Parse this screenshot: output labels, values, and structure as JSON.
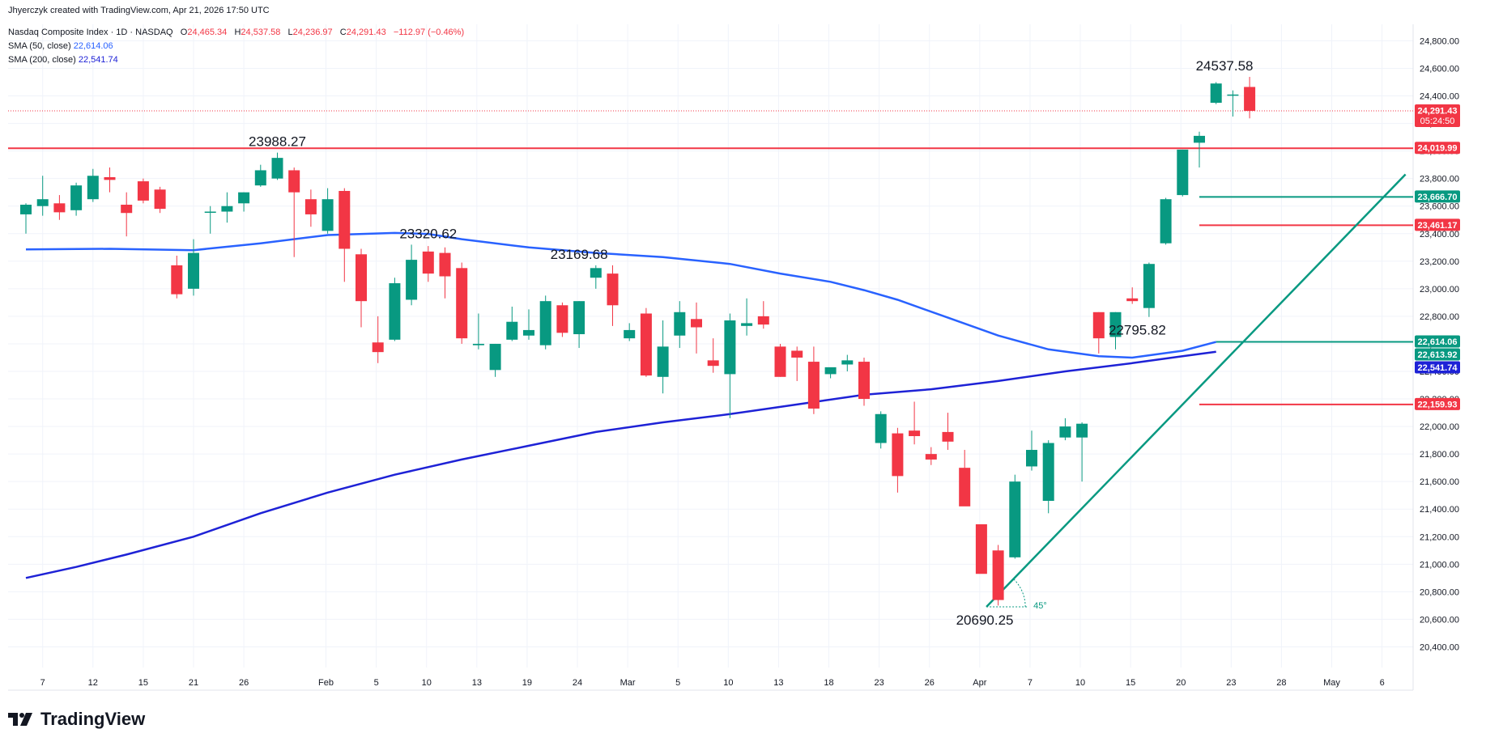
{
  "header": {
    "credit": "Jhyerczyk created with TradingView.com, Apr 21, 2026 17:50 UTC",
    "symbol": "Nasdaq Composite Index · 1D · NASDAQ",
    "ohlc": {
      "o_label": "O",
      "o": "24,465.34",
      "h_label": "H",
      "h": "24,537.58",
      "l_label": "L",
      "l": "24,236.97",
      "c_label": "C",
      "c": "24,291.43",
      "change": "−112.97 (−0.46%)"
    },
    "sma50": {
      "label": "SMA (50, close)",
      "value": "22,614.06"
    },
    "sma200": {
      "label": "SMA (200, close)",
      "value": "22,541.74"
    }
  },
  "brand": {
    "name": "TradingView"
  },
  "colors": {
    "up": "#089981",
    "down": "#f23645",
    "sma50": "#2962ff",
    "sma200": "#1e22d6",
    "line_red": "#f23645",
    "line_green": "#089981",
    "grid": "#f0f3fa",
    "text": "#131722"
  },
  "chart_data": {
    "type": "candlestick",
    "title": "Nasdaq Composite Index · 1D · NASDAQ",
    "ylim": [
      20250,
      24920
    ],
    "y_ticks": [
      20400,
      20600,
      20800,
      21000,
      21200,
      21400,
      21600,
      21800,
      22000,
      22200,
      22400,
      22600,
      22800,
      23000,
      23200,
      23400,
      23600,
      23800,
      24000,
      24200,
      24400,
      24600,
      24800
    ],
    "y_tick_labels": [
      "20,400.00",
      "20,600.00",
      "20,800.00",
      "21,000.00",
      "21,200.00",
      "21,400.00",
      "21,600.00",
      "21,800.00",
      "22,000.00",
      "22,200.00",
      "22,400.00",
      "22,600.00",
      "22,800.00",
      "23,000.00",
      "23,200.00",
      "23,400.00",
      "23,600.00",
      "23,800.00",
      "24,000.00",
      "24,200.00",
      "24,400.00",
      "24,600.00",
      "24,800.00"
    ],
    "x_ticks": [
      {
        "index": 1,
        "label": "7"
      },
      {
        "index": 4,
        "label": "12"
      },
      {
        "index": 7,
        "label": "15"
      },
      {
        "index": 10,
        "label": "21"
      },
      {
        "index": 13,
        "label": "26"
      },
      {
        "index": 17.9,
        "label": "Feb"
      },
      {
        "index": 20.9,
        "label": "5"
      },
      {
        "index": 23.9,
        "label": "10"
      },
      {
        "index": 26.9,
        "label": "13"
      },
      {
        "index": 29.9,
        "label": "19"
      },
      {
        "index": 32.9,
        "label": "24"
      },
      {
        "index": 35.9,
        "label": "Mar"
      },
      {
        "index": 38.9,
        "label": "5"
      },
      {
        "index": 41.9,
        "label": "10"
      },
      {
        "index": 44.9,
        "label": "13"
      },
      {
        "index": 47.9,
        "label": "18"
      },
      {
        "index": 50.9,
        "label": "23"
      },
      {
        "index": 53.9,
        "label": "26"
      },
      {
        "index": 56.9,
        "label": "Apr"
      },
      {
        "index": 59.9,
        "label": "7"
      },
      {
        "index": 62.9,
        "label": "10"
      },
      {
        "index": 65.9,
        "label": "15"
      },
      {
        "index": 68.9,
        "label": "20"
      },
      {
        "index": 71.9,
        "label": "23"
      },
      {
        "index": 74.9,
        "label": "28"
      },
      {
        "index": 77.9,
        "label": "May"
      },
      {
        "index": 80.9,
        "label": "6"
      }
    ],
    "candles": [
      {
        "o": 23540,
        "h": 23620,
        "l": 23400,
        "c": 23610
      },
      {
        "o": 23600,
        "h": 23820,
        "l": 23530,
        "c": 23650
      },
      {
        "o": 23620,
        "h": 23680,
        "l": 23500,
        "c": 23555
      },
      {
        "o": 23570,
        "h": 23770,
        "l": 23530,
        "c": 23750
      },
      {
        "o": 23650,
        "h": 23870,
        "l": 23630,
        "c": 23820
      },
      {
        "o": 23810,
        "h": 23880,
        "l": 23700,
        "c": 23790
      },
      {
        "o": 23610,
        "h": 23700,
        "l": 23380,
        "c": 23550
      },
      {
        "o": 23780,
        "h": 23800,
        "l": 23620,
        "c": 23640
      },
      {
        "o": 23720,
        "h": 23740,
        "l": 23550,
        "c": 23580
      },
      {
        "o": 23170,
        "h": 23240,
        "l": 22930,
        "c": 22960
      },
      {
        "o": 23000,
        "h": 23360,
        "l": 22950,
        "c": 23260
      },
      {
        "o": 23560,
        "h": 23600,
        "l": 23400,
        "c": 23560
      },
      {
        "o": 23560,
        "h": 23700,
        "l": 23480,
        "c": 23600
      },
      {
        "o": 23620,
        "h": 23700,
        "l": 23560,
        "c": 23700
      },
      {
        "o": 23750,
        "h": 23900,
        "l": 23740,
        "c": 23860
      },
      {
        "o": 23800,
        "h": 23988,
        "l": 23790,
        "c": 23950
      },
      {
        "o": 23860,
        "h": 23880,
        "l": 23230,
        "c": 23700
      },
      {
        "o": 23650,
        "h": 23720,
        "l": 23450,
        "c": 23540
      },
      {
        "o": 23420,
        "h": 23730,
        "l": 23400,
        "c": 23650
      },
      {
        "o": 23710,
        "h": 23730,
        "l": 23050,
        "c": 23290
      },
      {
        "o": 23250,
        "h": 23290,
        "l": 22720,
        "c": 22910
      },
      {
        "o": 22610,
        "h": 22800,
        "l": 22460,
        "c": 22540
      },
      {
        "o": 22630,
        "h": 23080,
        "l": 22620,
        "c": 23040
      },
      {
        "o": 22920,
        "h": 23320,
        "l": 22880,
        "c": 23210
      },
      {
        "o": 23270,
        "h": 23310,
        "l": 23050,
        "c": 23110
      },
      {
        "o": 23260,
        "h": 23300,
        "l": 22930,
        "c": 23090
      },
      {
        "o": 23150,
        "h": 23190,
        "l": 22600,
        "c": 22640
      },
      {
        "o": 22590,
        "h": 22820,
        "l": 22560,
        "c": 22600
      },
      {
        "o": 22410,
        "h": 22600,
        "l": 22360,
        "c": 22600
      },
      {
        "o": 22630,
        "h": 22870,
        "l": 22620,
        "c": 22760
      },
      {
        "o": 22660,
        "h": 22850,
        "l": 22630,
        "c": 22700
      },
      {
        "o": 22590,
        "h": 22950,
        "l": 22560,
        "c": 22910
      },
      {
        "o": 22880,
        "h": 22900,
        "l": 22650,
        "c": 22680
      },
      {
        "o": 22670,
        "h": 22910,
        "l": 22570,
        "c": 22910
      },
      {
        "o": 23080,
        "h": 23170,
        "l": 23000,
        "c": 23150
      },
      {
        "o": 23110,
        "h": 23170,
        "l": 22730,
        "c": 22880
      },
      {
        "o": 22640,
        "h": 22750,
        "l": 22620,
        "c": 22700
      },
      {
        "o": 22820,
        "h": 22860,
        "l": 22360,
        "c": 22370
      },
      {
        "o": 22360,
        "h": 22770,
        "l": 22240,
        "c": 22580
      },
      {
        "o": 22660,
        "h": 22910,
        "l": 22570,
        "c": 22830
      },
      {
        "o": 22780,
        "h": 22900,
        "l": 22530,
        "c": 22720
      },
      {
        "o": 22480,
        "h": 22640,
        "l": 22390,
        "c": 22440
      },
      {
        "o": 22380,
        "h": 22820,
        "l": 22060,
        "c": 22770
      },
      {
        "o": 22730,
        "h": 22930,
        "l": 22660,
        "c": 22750
      },
      {
        "o": 22800,
        "h": 22910,
        "l": 22710,
        "c": 22740
      },
      {
        "o": 22580,
        "h": 22600,
        "l": 22360,
        "c": 22360
      },
      {
        "o": 22550,
        "h": 22580,
        "l": 22330,
        "c": 22500
      },
      {
        "o": 22470,
        "h": 22580,
        "l": 22090,
        "c": 22130
      },
      {
        "o": 22380,
        "h": 22420,
        "l": 22350,
        "c": 22430
      },
      {
        "o": 22450,
        "h": 22520,
        "l": 22400,
        "c": 22480
      },
      {
        "o": 22470,
        "h": 22500,
        "l": 22150,
        "c": 22200
      },
      {
        "o": 21880,
        "h": 22110,
        "l": 21840,
        "c": 22090
      },
      {
        "o": 21950,
        "h": 21990,
        "l": 21520,
        "c": 21640
      },
      {
        "o": 21970,
        "h": 22180,
        "l": 21870,
        "c": 21930
      },
      {
        "o": 21800,
        "h": 21850,
        "l": 21720,
        "c": 21760
      },
      {
        "o": 21960,
        "h": 22100,
        "l": 21830,
        "c": 21890
      },
      {
        "o": 21700,
        "h": 21830,
        "l": 21450,
        "c": 21420
      },
      {
        "o": 21290,
        "h": 21290,
        "l": 20950,
        "c": 20930
      },
      {
        "o": 21100,
        "h": 21140,
        "l": 20700,
        "c": 20740
      },
      {
        "o": 21050,
        "h": 21650,
        "l": 21040,
        "c": 21600
      },
      {
        "o": 21710,
        "h": 21970,
        "l": 21680,
        "c": 21830
      },
      {
        "o": 21460,
        "h": 21900,
        "l": 21370,
        "c": 21880
      },
      {
        "o": 21920,
        "h": 22060,
        "l": 21900,
        "c": 22000
      },
      {
        "o": 21920,
        "h": 22030,
        "l": 21600,
        "c": 22020
      },
      {
        "o": 22830,
        "h": 22830,
        "l": 22530,
        "c": 22640
      },
      {
        "o": 22650,
        "h": 22830,
        "l": 22560,
        "c": 22830
      },
      {
        "o": 22930,
        "h": 23010,
        "l": 22890,
        "c": 22910
      },
      {
        "o": 22860,
        "h": 23190,
        "l": 22795,
        "c": 23180
      },
      {
        "o": 23330,
        "h": 23660,
        "l": 23320,
        "c": 23650
      },
      {
        "o": 23680,
        "h": 24010,
        "l": 23670,
        "c": 24010
      },
      {
        "o": 24060,
        "h": 24140,
        "l": 23880,
        "c": 24110
      },
      {
        "o": 24350,
        "h": 24500,
        "l": 24340,
        "c": 24490
      },
      {
        "o": 24410,
        "h": 24440,
        "l": 24250,
        "c": 24410
      },
      {
        "o": 24465,
        "h": 24538,
        "l": 24237,
        "c": 24291
      }
    ],
    "dates_note": "",
    "sma50": [
      [
        0,
        23285
      ],
      [
        5,
        23290
      ],
      [
        10,
        23280
      ],
      [
        14,
        23330
      ],
      [
        18,
        23390
      ],
      [
        22,
        23405
      ],
      [
        24,
        23398
      ],
      [
        26,
        23360
      ],
      [
        30,
        23300
      ],
      [
        34,
        23260
      ],
      [
        38,
        23230
      ],
      [
        42,
        23180
      ],
      [
        45,
        23110
      ],
      [
        48,
        23050
      ],
      [
        50,
        22990
      ],
      [
        52,
        22920
      ],
      [
        55,
        22790
      ],
      [
        58,
        22660
      ],
      [
        61,
        22560
      ],
      [
        64,
        22510
      ],
      [
        66,
        22500
      ],
      [
        69,
        22550
      ],
      [
        71,
        22614
      ]
    ],
    "sma200": [
      [
        0,
        20900
      ],
      [
        3,
        20980
      ],
      [
        6,
        21070
      ],
      [
        10,
        21200
      ],
      [
        14,
        21370
      ],
      [
        18,
        21520
      ],
      [
        22,
        21650
      ],
      [
        26,
        21760
      ],
      [
        30,
        21860
      ],
      [
        34,
        21960
      ],
      [
        38,
        22030
      ],
      [
        42,
        22090
      ],
      [
        46,
        22160
      ],
      [
        50,
        22230
      ],
      [
        54,
        22270
      ],
      [
        58,
        22330
      ],
      [
        62,
        22400
      ],
      [
        66,
        22460
      ],
      [
        69,
        22510
      ],
      [
        71,
        22542
      ]
    ],
    "horizontal_lines": [
      {
        "value": 24019.99,
        "color": "red",
        "x_start": 0,
        "label": "24,019.99"
      },
      {
        "value": 23666.7,
        "color": "green",
        "x_start": 70.0,
        "label": "23,666.70"
      },
      {
        "value": 23461.17,
        "color": "red",
        "x_start": 70.0,
        "label": "23,461.17"
      },
      {
        "value": 22614.06,
        "color": "green",
        "x_start": 71.0,
        "label": "22,614.06"
      },
      {
        "value": 22159.93,
        "color": "red",
        "x_start": 70.0,
        "label": "22,159.93"
      }
    ],
    "trendline": {
      "x1": 57.3,
      "y1": 20690.25,
      "x2": 82.3,
      "y2": 23830,
      "color": "green",
      "angle_label": "45°"
    },
    "annotations": [
      {
        "text": "23988.27",
        "index": 15,
        "value": 23988.27
      },
      {
        "text": "23320.62",
        "index": 24,
        "value": 23320.62
      },
      {
        "text": "23169.68",
        "index": 33,
        "value": 23169.68
      },
      {
        "text": "22795.82",
        "index": 66.3,
        "value": 22795.82
      },
      {
        "text": "24537.58",
        "index": 71.5,
        "value": 24537.58
      },
      {
        "text": "20690.25",
        "index": 57.2,
        "value": 20690.25
      }
    ],
    "axis_badges": [
      {
        "label": "24,291.43",
        "sub": "05:24:50",
        "value": 24291.43,
        "color": "red"
      },
      {
        "label": "24,019.99",
        "value": 24019.99,
        "color": "red"
      },
      {
        "label": "23,666.70",
        "value": 23666.7,
        "color": "green"
      },
      {
        "label": "23,461.17",
        "value": 23461.17,
        "color": "red"
      },
      {
        "label": "22,614.06",
        "value": 22614.06,
        "color": "green"
      },
      {
        "label": "22,613.92",
        "value": 22613.92,
        "color": "green"
      },
      {
        "label": "22,541.74",
        "value": 22541.74,
        "color": "blue"
      },
      {
        "label": "22,159.93",
        "value": 22159.93,
        "color": "red"
      }
    ],
    "last_price": 24291.43,
    "grid": true
  }
}
